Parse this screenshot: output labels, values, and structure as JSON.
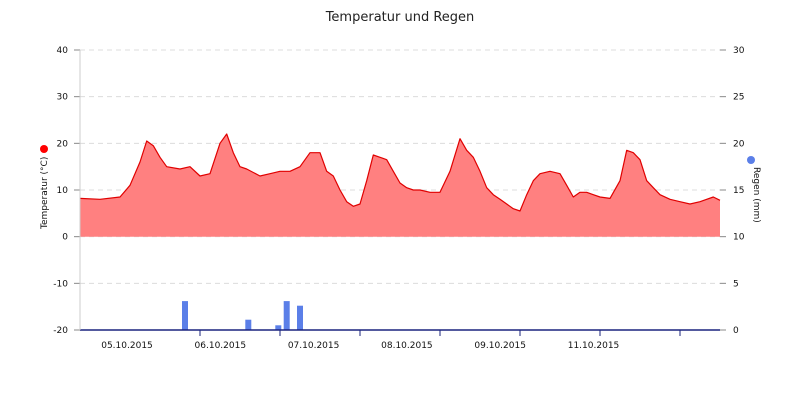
{
  "chart_data": {
    "type": "area",
    "title": "Temperatur und Regen",
    "grid": true,
    "colors": {
      "temperature_fill": "#ff8080",
      "temperature_line": "#e00000",
      "rain": "#5b7fe8",
      "temp_legend": "#ff0000",
      "rain_legend": "#5b7fe8",
      "axis": "#1a237e"
    },
    "x_axis": {
      "range": [
        "2015-10-04T12:00",
        "2015-10-12T12:00"
      ],
      "tick_labels": [
        "05.10.2015",
        "06.10.2015",
        "07.10.2015",
        "08.10.2015",
        "09.10.2015",
        "11.10.2015"
      ]
    },
    "y_left": {
      "label": "Temperatur (°C)",
      "range": [
        -20,
        40
      ],
      "tick_labels": [
        "40",
        "30",
        "20",
        "10",
        "0",
        "-10",
        "-20"
      ]
    },
    "y_right": {
      "label": "Regen (mm)",
      "range": [
        0,
        30
      ],
      "tick_labels": [
        "30",
        "25",
        "20",
        "15",
        "10",
        "5",
        "0"
      ]
    },
    "series": [
      {
        "name": "Temperatur (°C)",
        "type": "area",
        "axis": "left",
        "x": [
          "2015-10-04T12:00",
          "2015-10-04T18:00",
          "2015-10-05T00:00",
          "2015-10-05T03:00",
          "2015-10-05T06:00",
          "2015-10-05T08:00",
          "2015-10-05T10:00",
          "2015-10-05T12:00",
          "2015-10-05T14:00",
          "2015-10-05T18:00",
          "2015-10-05T21:00",
          "2015-10-06T00:00",
          "2015-10-06T03:00",
          "2015-10-06T06:00",
          "2015-10-06T08:00",
          "2015-10-06T10:00",
          "2015-10-06T12:00",
          "2015-10-06T14:00",
          "2015-10-06T18:00",
          "2015-10-06T21:00",
          "2015-10-07T00:00",
          "2015-10-07T03:00",
          "2015-10-07T06:00",
          "2015-10-07T09:00",
          "2015-10-07T12:00",
          "2015-10-07T14:00",
          "2015-10-07T16:00",
          "2015-10-07T18:00",
          "2015-10-07T20:00",
          "2015-10-07T22:00",
          "2015-10-08T00:00",
          "2015-10-08T02:00",
          "2015-10-08T04:00",
          "2015-10-08T06:00",
          "2015-10-08T08:00",
          "2015-10-08T10:00",
          "2015-10-08T12:00",
          "2015-10-08T14:00",
          "2015-10-08T16:00",
          "2015-10-08T18:00",
          "2015-10-08T21:00",
          "2015-10-09T00:00",
          "2015-10-09T03:00",
          "2015-10-09T06:00",
          "2015-10-09T08:00",
          "2015-10-09T10:00",
          "2015-10-09T12:00",
          "2015-10-09T14:00",
          "2015-10-09T16:00",
          "2015-10-09T18:00",
          "2015-10-09T20:00",
          "2015-10-09T22:00",
          "2015-10-10T00:00",
          "2015-10-10T02:00",
          "2015-10-10T04:00",
          "2015-10-10T06:00",
          "2015-10-10T09:00",
          "2015-10-10T12:00",
          "2015-10-10T14:00",
          "2015-10-10T16:00",
          "2015-10-10T18:00",
          "2015-10-10T20:00",
          "2015-10-10T22:00",
          "2015-10-11T00:00",
          "2015-10-11T03:00",
          "2015-10-11T06:00",
          "2015-10-11T08:00",
          "2015-10-11T10:00",
          "2015-10-11T12:00",
          "2015-10-11T14:00",
          "2015-10-11T16:00",
          "2015-10-11T18:00",
          "2015-10-11T21:00",
          "2015-10-12T00:00",
          "2015-10-12T03:00",
          "2015-10-12T06:00",
          "2015-10-12T08:00",
          "2015-10-12T10:00",
          "2015-10-12T12:00"
        ],
        "values": [
          8.2,
          8.0,
          8.5,
          11.0,
          16.0,
          20.5,
          19.5,
          17.0,
          15.0,
          14.5,
          15.0,
          13.0,
          13.5,
          20.0,
          22.0,
          18.0,
          15.0,
          14.5,
          13.0,
          13.5,
          14.0,
          14.0,
          15.0,
          18.0,
          18.0,
          14.0,
          13.0,
          10.0,
          7.5,
          6.5,
          7.0,
          12.0,
          17.5,
          17.0,
          16.5,
          14.0,
          11.5,
          10.5,
          10.0,
          10.0,
          9.5,
          9.5,
          14.0,
          21.0,
          18.5,
          17.0,
          14.0,
          10.5,
          9.0,
          8.0,
          7.0,
          6.0,
          5.5,
          9.0,
          12.0,
          13.5,
          14.0,
          13.5,
          11.0,
          8.5,
          9.5,
          9.5,
          9.0,
          8.5,
          8.2,
          12.0,
          18.5,
          18.0,
          16.5,
          12.0,
          10.5,
          9.0,
          8.0,
          7.5,
          7.0,
          7.5,
          8.0,
          8.5,
          7.8
        ]
      },
      {
        "name": "Regen (mm)",
        "type": "bar",
        "axis": "right",
        "x": [
          "2015-10-05T19:30",
          "2015-10-06T14:30",
          "2015-10-06T23:30",
          "2015-10-07T02:00",
          "2015-10-07T06:00"
        ],
        "values": [
          3.1,
          1.1,
          0.5,
          3.1,
          2.6
        ]
      }
    ]
  }
}
